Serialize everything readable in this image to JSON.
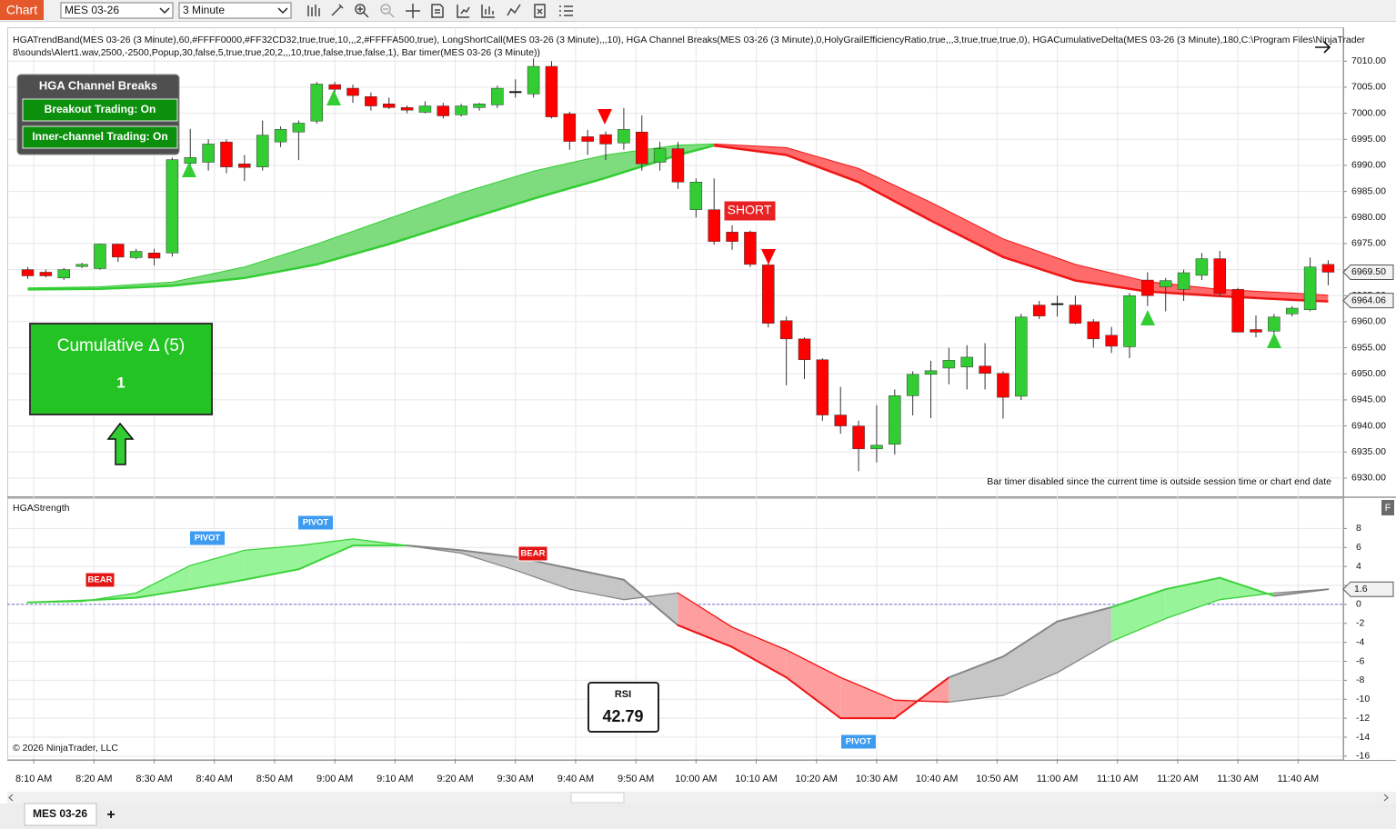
{
  "toolbar": {
    "tab": "Chart",
    "instrument": "MES 03-26",
    "interval": "3 Minute"
  },
  "indicator_lines": [
    "HGATrendBand(MES 03-26 (3 Minute),60,#FFFF0000,#FF32CD32,true,true,10,,,2,#FFFFA500,true), LongShortCall(MES 03-26 (3 Minute),,,10), HGA Channel Breaks(MES 03-26 (3 Minute),0,HolyGrailEfficiencyRatio,true,,,3,true,true,true,0), HGACumulativeDelta(MES 03-26 (3 Minute),180,C:\\Program Files\\NinjaTrader",
    "8\\sounds\\Alert1.wav,2500,-2500,Popup,30,false,5,true,true,20,2,,,10,true,false,true,false,1), Bar timer(MES 03-26 (3 Minute))"
  ],
  "channel_breaks": {
    "title": "HGA Channel Breaks",
    "buttons": [
      "Breakout Trading: On",
      "Inner-channel Trading: On"
    ]
  },
  "cumulative_delta": {
    "title": "Cumulative Δ (5)",
    "value": 1
  },
  "notice": "Bar timer disabled since the current time is outside session time or chart end date",
  "panel_button": "F",
  "rsi": {
    "title": "RSI",
    "value": 42.79
  },
  "copyright": "© 2026 NinjaTrader, LLC",
  "tabs": {
    "active": "MES 03-26",
    "add": "+"
  },
  "chart_data": [
    {
      "type": "candlestick",
      "x": [
        489,
        492,
        495,
        498,
        501,
        504,
        507,
        510,
        513,
        516,
        519,
        522,
        525,
        528,
        531,
        534,
        537,
        540,
        543,
        546,
        549,
        552,
        555,
        558,
        561,
        564,
        567,
        570,
        573,
        576,
        579,
        582,
        585,
        588,
        591,
        594,
        597,
        600,
        603,
        606,
        609,
        612,
        615,
        618,
        621,
        624,
        627,
        630,
        633,
        636,
        639,
        642,
        645,
        648,
        651,
        654,
        657,
        660,
        663,
        666,
        669,
        672,
        675,
        678,
        681,
        684,
        687,
        690,
        693,
        696,
        699,
        702,
        705
      ],
      "open": [
        6970,
        6969.5,
        6968.4,
        6970.6,
        6970.2,
        6974.9,
        6972.3,
        6973.2,
        6973.2,
        6990.4,
        6990.6,
        6994.5,
        6990.3,
        6989.7,
        6994.5,
        6996.4,
        6998.5,
        7005.5,
        7004.8,
        7003.2,
        7001.8,
        7001.1,
        7000.2,
        7001.4,
        6999.7,
        7001.1,
        7001.6,
        7004.2,
        7003.7,
        7009,
        6999.9,
        6995.5,
        6995.9,
        6994.3,
        6996.4,
        6990.6,
        6993.2,
        6981.5,
        6981.5,
        6977.2,
        6977.2,
        6970.9,
        6960.2,
        6956.7,
        6952.7,
        6942.1,
        6940,
        6935.6,
        6936.5,
        6945.8,
        6949.9,
        6951.1,
        6951.3,
        6951.5,
        6950.1,
        6945.7,
        6963.2,
        6963.5,
        6963.2,
        6960,
        6957.4,
        6955.2,
        6968,
        6966.7,
        6966.2,
        6968.9,
        6972.1,
        6966.2,
        6958.5,
        6958.2,
        6961.5,
        6962.3,
        6971
      ],
      "high": [
        6970.5,
        6970,
        6970.3,
        6971.3,
        6975,
        6975,
        6974,
        6974,
        6991.5,
        6997,
        6995,
        6995,
        6992,
        6998.6,
        6997.5,
        6998.6,
        7006,
        7006,
        7005.5,
        7004,
        7003,
        7001.5,
        7002.3,
        7002,
        7001.8,
        7002,
        7005.3,
        7006.5,
        7010.5,
        7010,
        7000.3,
        6996.8,
        6996.5,
        7001,
        6999.6,
        6994.5,
        6994.5,
        6987.5,
        6987.5,
        6978.5,
        6977.5,
        6971.5,
        6961,
        6957,
        6953,
        6947.5,
        6941,
        6944,
        6947,
        6950.5,
        6952.5,
        6955,
        6955.5,
        6955.9,
        6950.5,
        6961.5,
        6964,
        6965,
        6965,
        6960.5,
        6959,
        6965.5,
        6969.5,
        6968.4,
        6970,
        6973.2,
        6973.6,
        6966.5,
        6961.2,
        6961.5,
        6963,
        6972.3,
        6971.8
      ],
      "low": [
        6968.2,
        6968.5,
        6968,
        6970.3,
        6970,
        6971.5,
        6972,
        6970.8,
        6972.5,
        6988,
        6989,
        6988.5,
        6987,
        6989,
        6993.5,
        6991,
        6998,
        7003,
        7002,
        7000.5,
        7000.8,
        7000,
        7000,
        6999,
        6999.4,
        7000.5,
        7001,
        7003,
        7003,
        6999,
        6993,
        6992,
        6991,
        6993,
        6989,
        6989,
        6985.5,
        6980,
        6974.8,
        6973.8,
        6970.5,
        6958.9,
        6947.8,
        6949,
        6941,
        6938.5,
        6931.3,
        6933,
        6934.5,
        6942,
        6941.5,
        6948,
        6947,
        6947,
        6941.4,
        6945,
        6960.5,
        6961,
        6959.5,
        6955,
        6954,
        6953,
        6963,
        6962,
        6964,
        6968,
        6965,
        6958,
        6957,
        6957,
        6961,
        6962,
        6967
      ],
      "close": [
        6968.8,
        6968.8,
        6970,
        6971,
        6974.9,
        6972.4,
        6973.5,
        6972.2,
        6991.1,
        6991.5,
        6994.1,
        6989.7,
        6989.6,
        6995.8,
        6996.9,
        6998.1,
        7005.6,
        7004.6,
        7003.4,
        7001.4,
        7001.1,
        7000.6,
        7001.4,
        6999.5,
        7001.4,
        7001.8,
        7004.8,
        7004.2,
        7009,
        6999.3,
        6994.6,
        6994.6,
        6994.1,
        6996.9,
        6990.3,
        6993.2,
        6986.8,
        6986.8,
        6975.4,
        6975.4,
        6971,
        6959.7,
        6956.7,
        6952.7,
        6942.1,
        6940,
        6935.6,
        6936.3,
        6945.8,
        6949.9,
        6950.6,
        6952.6,
        6953.2,
        6950.1,
        6945.5,
        6960.9,
        6961.1,
        6963.5,
        6959.7,
        6956.7,
        6955.3,
        6965,
        6965,
        6967.9,
        6969.4,
        6972.1,
        6965.4,
        6958,
        6958,
        6960.9,
        6962.6,
        6970.5,
        6969.5
      ],
      "colors": {
        "up": "#32CD32",
        "down": "#FF0000",
        "flat": "#000000"
      },
      "bands": [
        {
          "color": "#32CD32",
          "fill": "#7EDC7E",
          "x": [
            489,
            501,
            513,
            525,
            537,
            549,
            561,
            573,
            585,
            597,
            603
          ],
          "upper": [
            6966.5,
            6966.7,
            6967.6,
            6970.5,
            6974.9,
            6979.8,
            6984.7,
            6988.9,
            6992,
            6993.9,
            6994.1
          ],
          "lower": [
            6966.2,
            6966.3,
            6966.9,
            6968.4,
            6971,
            6974.9,
            6979.3,
            6983.6,
            6987.6,
            6992,
            6993.8
          ]
        },
        {
          "color": "#F01515",
          "fill": "#FF6A6A",
          "x": [
            603,
            615,
            627,
            639,
            651,
            663,
            675,
            687,
            699,
            705
          ],
          "upper": [
            6994.1,
            6993.4,
            6989.4,
            6982.9,
            6975.9,
            6971,
            6967.7,
            6966.2,
            6965.5,
            6965.1
          ],
          "lower": [
            6993.8,
            6992,
            6986.8,
            6979.4,
            6972.4,
            6967.9,
            6965.8,
            6964.9,
            6964.2,
            6963.9
          ]
        }
      ],
      "signal_label": "SHORT",
      "price_markers": [
        {
          "value": 6969.5,
          "label": "6969.50"
        },
        6964.06
      ],
      "xlim": [
        485.6,
        707.5
      ],
      "xticks": [
        {
          "value": 490,
          "label": "8:10 AM"
        },
        {
          "value": 500,
          "label": "8:20 AM"
        },
        {
          "value": 510,
          "label": "8:30 AM"
        },
        {
          "value": 520,
          "label": "8:40 AM"
        },
        {
          "value": 530,
          "label": "8:50 AM"
        },
        {
          "value": 540,
          "label": "9:00 AM"
        },
        {
          "value": 550,
          "label": "9:10 AM"
        },
        {
          "value": 560,
          "label": "9:20 AM"
        },
        {
          "value": 570,
          "label": "9:30 AM"
        },
        {
          "value": 580,
          "label": "9:40 AM"
        },
        {
          "value": 590,
          "label": "9:50 AM"
        },
        {
          "value": 600,
          "label": "10:00 AM"
        },
        {
          "value": 610,
          "label": "10:10 AM"
        },
        {
          "value": 620,
          "label": "10:20 AM"
        },
        {
          "value": 630,
          "label": "10:30 AM"
        },
        {
          "value": 640,
          "label": "10:40 AM"
        },
        {
          "value": 650,
          "label": "10:50 AM"
        },
        {
          "value": 660,
          "label": "11:00 AM"
        },
        {
          "value": 670,
          "label": "11:10 AM"
        },
        {
          "value": 680,
          "label": "11:20 AM"
        },
        {
          "value": 690,
          "label": "11:30 AM"
        },
        {
          "value": 700,
          "label": "11:40 AM"
        }
      ],
      "ylim": [
        6926.5,
        7016.5
      ],
      "yticks": [
        {
          "value": 6930,
          "label": "6930.00"
        },
        {
          "value": 6935,
          "label": "6935.00"
        },
        {
          "value": 6940,
          "label": "6940.00"
        },
        {
          "value": 6945,
          "label": "6945.00"
        },
        {
          "value": 6950,
          "label": "6950.00"
        },
        {
          "value": 6955,
          "label": "6955.00"
        },
        {
          "value": 6960,
          "label": "6960.00"
        },
        {
          "value": 6965,
          "label": "6965.00"
        },
        {
          "value": 6970,
          "label": "6970.00"
        },
        {
          "value": 6975,
          "label": "6975.00"
        },
        {
          "value": 6980,
          "label": "6980.00"
        },
        {
          "value": 6985,
          "label": "6985.00"
        },
        {
          "value": 6990,
          "label": "6990.00"
        },
        {
          "value": 6995,
          "label": "6995.00"
        },
        {
          "value": 7000,
          "label": "7000.00"
        },
        {
          "value": 7005,
          "label": "7005.00"
        },
        {
          "value": 7010,
          "label": "7010.00"
        }
      ],
      "grid": true
    },
    {
      "type": "line",
      "title": "HGAStrength",
      "x": [
        489,
        498,
        507,
        516,
        525,
        534,
        543,
        552,
        561,
        570,
        579,
        588,
        597,
        606,
        615,
        624,
        633,
        642,
        651,
        660,
        669,
        678,
        687,
        696,
        705
      ],
      "series": [
        {
          "values": [
            0.2,
            0.4,
            0.7,
            1.6,
            2.6,
            3.7,
            6.2,
            6.2,
            5.7,
            5,
            3.8,
            2.6,
            -2.2,
            -4.5,
            -7.7,
            -12,
            -12,
            -7.7,
            -5.5,
            -1.8,
            -0.3,
            1.6,
            2.8,
            0.9,
            1.6
          ]
        },
        {
          "values": [
            0.2,
            0.3,
            1.2,
            4.1,
            5.7,
            6.2,
            6.9,
            6.2,
            5.4,
            3.6,
            1.6,
            0.5,
            1.2,
            -2.4,
            -4.8,
            -7.7,
            -10.1,
            -10.3,
            -9.6,
            -7.2,
            -3.9,
            -1.5,
            0.5,
            1.2,
            1.6
          ]
        }
      ],
      "segment_colors": [
        "green",
        "green",
        "green",
        "green",
        "green",
        "green",
        "green",
        "gray",
        "gray",
        "gray",
        "gray",
        "gray",
        "red",
        "red",
        "red",
        "red",
        "red",
        "gray",
        "gray",
        "gray",
        "green",
        "green",
        "green",
        "gray"
      ],
      "palette": {
        "green": {
          "fill": "#98F498",
          "line": "#3CD23C"
        },
        "gray": {
          "fill": "#C6C6C6",
          "line": "#858585"
        },
        "red": {
          "fill": "#FF9E9E",
          "line": "#F01212"
        }
      },
      "zero_line_color": "#6F6FD8",
      "labels": [
        {
          "text": "BEAR",
          "color": "#E41515"
        },
        {
          "text": "PIVOT",
          "color": "#3D9BF0"
        },
        {
          "text": "PIVOT",
          "color": "#3D9BF0"
        },
        {
          "text": "BEAR",
          "color": "#E41515"
        },
        {
          "text": "PIVOT",
          "color": "#3D9BF0"
        }
      ],
      "ylim": [
        -16.3,
        11.2
      ],
      "yticks": [
        8,
        6,
        4,
        2,
        0,
        -2,
        -4,
        -6,
        -8,
        -10,
        -12,
        -14,
        -16
      ],
      "grid": true
    }
  ]
}
